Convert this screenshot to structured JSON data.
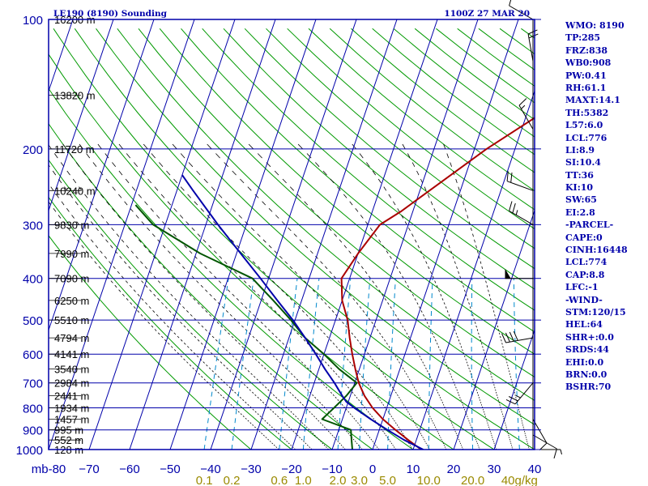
{
  "header": {
    "station_title": "LE190 (8190) Sounding",
    "valid_time": "1100Z 27 MAR 20"
  },
  "colors": {
    "frame": "#0000aa",
    "grid": "#0000aa",
    "dry_adiabat": "#009900",
    "moist_adiabat": "#000000",
    "mixing_ratio": "#0088cc",
    "temperature": "#aa0000",
    "dewpoint": "#005500",
    "parcel": "#0000aa",
    "wind_barb": "#000000",
    "mixing_label": "#9a8a00"
  },
  "stats": [
    "WMO: 8190",
    "TP:285",
    "FRZ:838",
    "WB0:908",
    "PW:0.41",
    "RH:61.1",
    "MAXT:14.1",
    "TH:5382",
    "L57:6.0",
    "LCL:776",
    "LI:8.9",
    "SI:10.4",
    "TT:36",
    "KI:10",
    "SW:65",
    "EI:2.8",
    "-PARCEL-",
    "CAPE:0",
    "CINH:16448",
    "LCL:774",
    "CAP:8.8",
    "LFC:-1",
    "-WIND-",
    "STM:120/15",
    "HEL:64",
    "SHR+:0.0",
    "SRDS:44",
    "EHI:0.0",
    "BRN:0.0",
    "BSHR:70"
  ],
  "chart_data": {
    "type": "skew-t",
    "pressure_axis": {
      "unit": "mb",
      "scale": "log",
      "ticks": [
        100,
        200,
        300,
        400,
        500,
        600,
        700,
        800,
        900,
        1000
      ],
      "range": [
        1000,
        100
      ]
    },
    "temperature_axis": {
      "unit": "°C",
      "ticks": [
        -80,
        -70,
        -60,
        -50,
        -40,
        -30,
        -20,
        -10,
        0,
        10,
        20,
        30,
        40
      ],
      "tick_labels": [
        "mb-80",
        "−70",
        "−60",
        "−50",
        "−40",
        "−30",
        "−20",
        "−10",
        "0",
        "10",
        "20",
        "30",
        "40"
      ],
      "range": [
        -80,
        40
      ]
    },
    "mixing_ratio_labels": [
      {
        "value": 0.1,
        "label": "0.1"
      },
      {
        "value": 0.2,
        "label": "0.2"
      },
      {
        "value": 0.6,
        "label": "0.6"
      },
      {
        "value": 1.0,
        "label": "1.0"
      },
      {
        "value": 2.0,
        "label": "2.0"
      },
      {
        "value": 3.0,
        "label": "3.0"
      },
      {
        "value": 5.0,
        "label": "5.0"
      },
      {
        "value": 10.0,
        "label": "10.0"
      },
      {
        "value": 20.0,
        "label": "20.0"
      },
      {
        "value": 40.0,
        "label": "40g/kg"
      }
    ],
    "height_labels": [
      {
        "p": 100,
        "label": "16200 m"
      },
      {
        "p": 150,
        "label": "13820 m"
      },
      {
        "p": 200,
        "label": "11720 m"
      },
      {
        "p": 250,
        "label": "10240 m"
      },
      {
        "p": 300,
        "label": "9830 m"
      },
      {
        "p": 350,
        "label": "7990 m"
      },
      {
        "p": 400,
        "label": "7090 m"
      },
      {
        "p": 450,
        "label": "6250 m"
      },
      {
        "p": 500,
        "label": "5510 m"
      },
      {
        "p": 550,
        "label": "4794 m"
      },
      {
        "p": 600,
        "label": "4141 m"
      },
      {
        "p": 650,
        "label": "3540 m"
      },
      {
        "p": 700,
        "label": "2984 m"
      },
      {
        "p": 750,
        "label": "2441 m"
      },
      {
        "p": 800,
        "label": "1934 m"
      },
      {
        "p": 850,
        "label": "1457 m"
      },
      {
        "p": 900,
        "label": "995 m"
      },
      {
        "p": 950,
        "label": "552 m"
      },
      {
        "p": 1000,
        "label": "128 m"
      }
    ],
    "series": [
      {
        "name": "temperature",
        "points": [
          {
            "p": 1000,
            "t": 12
          },
          {
            "p": 950,
            "t": 8
          },
          {
            "p": 900,
            "t": 4
          },
          {
            "p": 850,
            "t": 0
          },
          {
            "p": 800,
            "t": -3.5
          },
          {
            "p": 750,
            "t": -6.5
          },
          {
            "p": 700,
            "t": -9
          },
          {
            "p": 650,
            "t": -11
          },
          {
            "p": 600,
            "t": -13
          },
          {
            "p": 550,
            "t": -15
          },
          {
            "p": 500,
            "t": -17
          },
          {
            "p": 450,
            "t": -20
          },
          {
            "p": 400,
            "t": -22
          },
          {
            "p": 350,
            "t": -20
          },
          {
            "p": 300,
            "t": -17
          },
          {
            "p": 280,
            "t": -13
          },
          {
            "p": 200,
            "t": 3
          },
          {
            "p": 150,
            "t": 19
          },
          {
            "p": 100,
            "t": 28
          }
        ]
      },
      {
        "name": "dewpoint",
        "points": [
          {
            "p": 1000,
            "t": -5
          },
          {
            "p": 950,
            "t": -6
          },
          {
            "p": 900,
            "t": -7
          },
          {
            "p": 850,
            "t": -15
          },
          {
            "p": 800,
            "t": -13
          },
          {
            "p": 750,
            "t": -11
          },
          {
            "p": 700,
            "t": -9.5
          },
          {
            "p": 650,
            "t": -15
          },
          {
            "p": 600,
            "t": -20
          },
          {
            "p": 550,
            "t": -26
          },
          {
            "p": 500,
            "t": -31
          },
          {
            "p": 450,
            "t": -37
          },
          {
            "p": 400,
            "t": -44
          },
          {
            "p": 350,
            "t": -59
          },
          {
            "p": 300,
            "t": -73
          },
          {
            "p": 270,
            "t": -79
          }
        ]
      },
      {
        "name": "parcel",
        "points": [
          {
            "p": 1000,
            "t": 12.5
          },
          {
            "p": 950,
            "t": 7
          },
          {
            "p": 900,
            "t": 2
          },
          {
            "p": 850,
            "t": -3
          },
          {
            "p": 800,
            "t": -8
          },
          {
            "p": 774,
            "t": -10.5
          },
          {
            "p": 750,
            "t": -12
          },
          {
            "p": 700,
            "t": -15
          },
          {
            "p": 650,
            "t": -18.5
          },
          {
            "p": 600,
            "t": -22
          },
          {
            "p": 550,
            "t": -26
          },
          {
            "p": 500,
            "t": -30.5
          },
          {
            "p": 450,
            "t": -36
          },
          {
            "p": 400,
            "t": -42
          },
          {
            "p": 350,
            "t": -49
          },
          {
            "p": 300,
            "t": -57
          },
          {
            "p": 250,
            "t": -66
          },
          {
            "p": 230,
            "t": -70
          }
        ]
      }
    ],
    "wind_barbs": [
      {
        "p": 1000,
        "dir": 90,
        "speed": 5
      },
      {
        "p": 925,
        "dir": 120,
        "speed": 10
      },
      {
        "p": 850,
        "dir": 150,
        "speed": 10
      },
      {
        "p": 700,
        "dir": 220,
        "speed": 25
      },
      {
        "p": 550,
        "dir": 260,
        "speed": 40
      },
      {
        "p": 400,
        "dir": 270,
        "speed": 50
      },
      {
        "p": 300,
        "dir": 300,
        "speed": 25
      },
      {
        "p": 250,
        "dir": 290,
        "speed": 20
      },
      {
        "p": 180,
        "dir": 330,
        "speed": 15
      },
      {
        "p": 125,
        "dir": 350,
        "speed": 20
      },
      {
        "p": 100,
        "dir": 300,
        "speed": 10
      }
    ]
  }
}
